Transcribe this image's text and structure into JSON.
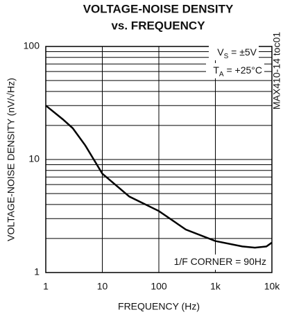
{
  "chart_data": {
    "type": "line",
    "title": [
      "VOLTAGE-NOISE DENSITY",
      "vs. FREQUENCY"
    ],
    "x_label": "FREQUENCY (Hz)",
    "y_label": "VOLTAGE-NOISE DENSITY (nV/√Hz)",
    "x_scale": "log",
    "y_scale": "log",
    "xlim": [
      1,
      10000
    ],
    "ylim": [
      1,
      100
    ],
    "xticks": [
      1,
      10,
      100,
      {
        "value": 1000,
        "label": "1k"
      },
      {
        "value": 10000,
        "label": "10k"
      }
    ],
    "yticks": [
      1,
      10,
      100
    ],
    "yminorticks": [
      2,
      3,
      4,
      5,
      6,
      7,
      8,
      9,
      20,
      30,
      40,
      50,
      60,
      70,
      80,
      90
    ],
    "grid": true,
    "series": [
      {
        "color": "#000000",
        "x": [
          1,
          2,
          3,
          5,
          10,
          30,
          100,
          300,
          1000,
          3000,
          5000,
          8000,
          10000
        ],
        "values": [
          30,
          22.7,
          18.9,
          13.3,
          7.5,
          4.7,
          3.5,
          2.4,
          1.9,
          1.7,
          1.66,
          1.7,
          1.84
        ]
      }
    ],
    "annotations": [
      {
        "parts": [
          "V",
          "S",
          " = ±5V"
        ]
      },
      {
        "parts": [
          "T",
          "A",
          " = +25°C"
        ]
      },
      {
        "parts": [
          "1/F CORNER = 90Hz"
        ]
      }
    ],
    "side_note": "MAX410-14 toc01"
  }
}
